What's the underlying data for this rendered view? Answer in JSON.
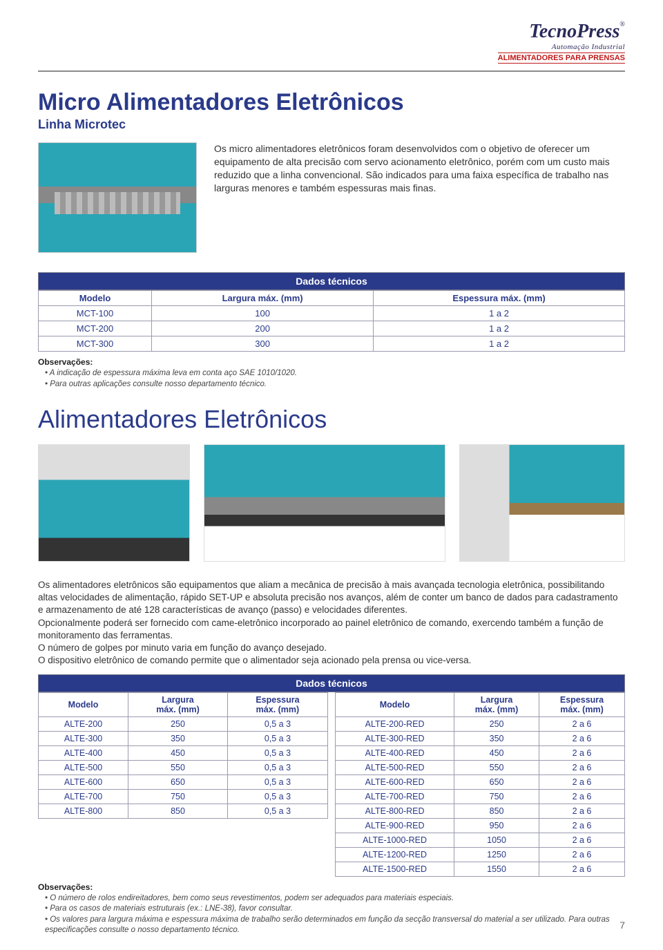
{
  "logo": {
    "brand1": "Tecno",
    "brand2": "Press",
    "sub": "Automação Industrial",
    "tagline": "ALIMENTADORES PARA PRENSAS",
    "reg": "®"
  },
  "section1": {
    "title": "Micro Alimentadores Eletrônicos",
    "subtitle": "Linha Microtec",
    "intro": "Os micro alimentadores eletrônicos foram desenvolvidos com o objetivo de oferecer um equipamento de alta precisão com servo acionamento eletrônico, porém com um custo mais reduzido que a linha convencional. São indicados para uma faixa específica de trabalho nas larguras menores e também espessuras mais finas.",
    "dados_label": "Dados técnicos",
    "columns": [
      "Modelo",
      "Largura máx. (mm)",
      "Espessura máx. (mm)"
    ],
    "rows": [
      [
        "MCT-100",
        "100",
        "1 a 2"
      ],
      [
        "MCT-200",
        "200",
        "1 a 2"
      ],
      [
        "MCT-300",
        "300",
        "1 a 2"
      ]
    ],
    "obs_title": "Observações:",
    "obs": [
      "A indicação de espessura máxima leva em conta aço SAE 1010/1020.",
      "Para outras aplicações consulte nosso departamento técnico."
    ]
  },
  "section2": {
    "title": "Alimentadores Eletrônicos",
    "body": "Os alimentadores eletrônicos são equipamentos que aliam a mecânica de precisão à mais avançada tecnologia eletrônica, possibilitando altas velocidades de alimentação, rápido SET-UP e absoluta precisão nos avanços, além de conter um banco de dados para cadastramento e armazenamento de até 128 características de avanço (passo) e velocidades diferentes.\nOpcionalmente poderá ser fornecido com came-eletrônico incorporado ao painel eletrônico de comando, exercendo também a função de monitoramento das ferramentas.\nO número de golpes por minuto varia em função do avanço desejado.\nO dispositivo eletrônico de comando permite que o alimentador seja acionado pela prensa ou vice-versa.",
    "dados_label": "Dados técnicos",
    "cols_left": [
      "Modelo",
      "Largura máx. (mm)",
      "Espessura máx. (mm)"
    ],
    "cols_right": [
      "Modelo",
      "Largura máx. (mm)",
      "Espessura máx. (mm)"
    ],
    "rows_left": [
      [
        "ALTE-200",
        "250",
        "0,5 a 3"
      ],
      [
        "ALTE-300",
        "350",
        "0,5 a 3"
      ],
      [
        "ALTE-400",
        "450",
        "0,5 a 3"
      ],
      [
        "ALTE-500",
        "550",
        "0,5 a 3"
      ],
      [
        "ALTE-600",
        "650",
        "0,5 a 3"
      ],
      [
        "ALTE-700",
        "750",
        "0,5 a 3"
      ],
      [
        "ALTE-800",
        "850",
        "0,5 a 3"
      ]
    ],
    "rows_right": [
      [
        "ALTE-200-RED",
        "250",
        "2 a 6"
      ],
      [
        "ALTE-300-RED",
        "350",
        "2 a 6"
      ],
      [
        "ALTE-400-RED",
        "450",
        "2 a 6"
      ],
      [
        "ALTE-500-RED",
        "550",
        "2 a 6"
      ],
      [
        "ALTE-600-RED",
        "650",
        "2 a 6"
      ],
      [
        "ALTE-700-RED",
        "750",
        "2 a 6"
      ],
      [
        "ALTE-800-RED",
        "850",
        "2 a 6"
      ],
      [
        "ALTE-900-RED",
        "950",
        "2 a 6"
      ],
      [
        "ALTE-1000-RED",
        "1050",
        "2 a 6"
      ],
      [
        "ALTE-1200-RED",
        "1250",
        "2 a 6"
      ],
      [
        "ALTE-1500-RED",
        "1550",
        "2 a 6"
      ]
    ],
    "obs_title": "Observações:",
    "obs": [
      "O número de rolos endireitadores, bem como seus revestimentos, podem ser adequados para materiais especiais.",
      "Para os casos de materiais estruturais (ex.: LNE-38), favor consultar.",
      "Os valores para largura máxima e espessura máxima de trabalho serão determinados em função da secção transversal do material a ser utilizado. Para outras especificações consulte o nosso departamento técnico."
    ]
  },
  "page_number": "7",
  "style": {
    "primary_color": "#2a3a8a",
    "accent_color": "#c01818",
    "border_color": "#9a9ab0",
    "machine_color": "#2aa5b5"
  }
}
